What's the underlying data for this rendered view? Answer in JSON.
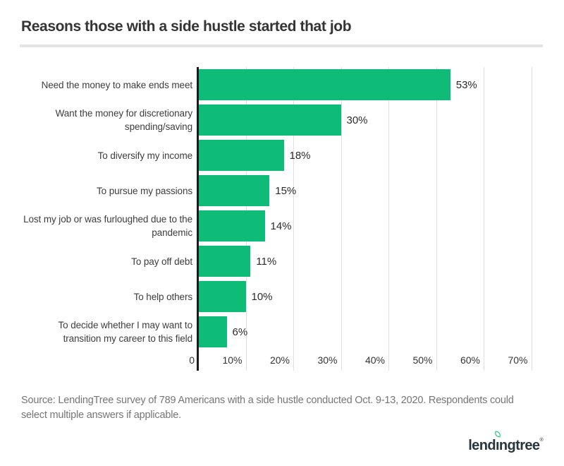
{
  "header": {
    "title": "Reasons those with a side hustle started that job"
  },
  "chart_data": {
    "type": "bar",
    "orientation": "horizontal",
    "title": "Reasons those with a side hustle started that job",
    "categories": [
      "Need the money to make ends meet",
      "Want the money for discretionary spending/saving",
      "To diversify my income",
      "To pursue my passions",
      "Lost my job or was furloughed due to the pandemic",
      "To pay off debt",
      "To help others",
      "To decide whether I may want to transition my career to this field"
    ],
    "values": [
      53,
      30,
      18,
      15,
      14,
      11,
      10,
      6
    ],
    "value_labels": [
      "53%",
      "30%",
      "18%",
      "15%",
      "14%",
      "11%",
      "10%",
      "6%"
    ],
    "x_ticks": [
      "0",
      "10%",
      "20%",
      "30%",
      "40%",
      "50%",
      "60%",
      "70%"
    ],
    "x_tick_values": [
      0,
      10,
      20,
      30,
      40,
      50,
      60,
      70
    ],
    "xlim": [
      0,
      72.4
    ],
    "xlabel": "",
    "ylabel": "",
    "grid": true,
    "legend_position": "none",
    "bar_color": "#0fbc77",
    "axis_color": "#1b1b1b",
    "gridline_color": "#e0e0e0"
  },
  "source": {
    "text": "Source: LendingTree survey of 789 Americans with a side hustle conducted Oct. 9-13, 2020. Respondents could select multiple answers if applicable."
  },
  "footer": {
    "logo": {
      "pre": "lend",
      "i_char": "ı",
      "post": "ngtree",
      "trademark": "®",
      "leaf_icon_color": "#0fbc77"
    }
  }
}
